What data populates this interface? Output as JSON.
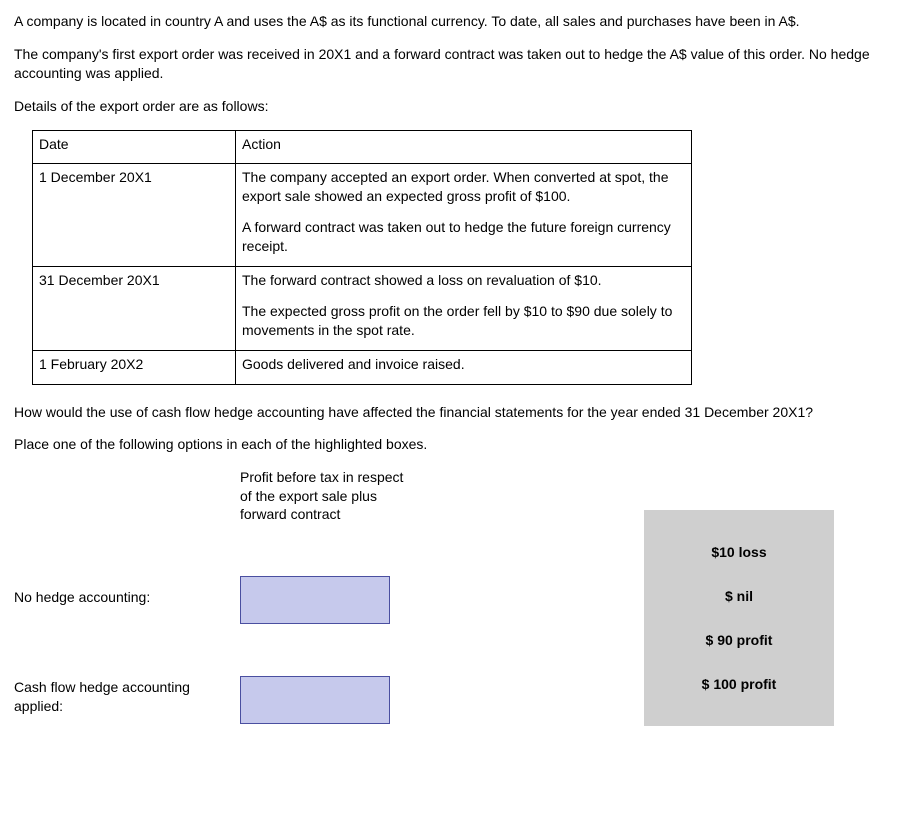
{
  "intro": {
    "p1": "A company is located in country A and uses the A$ as its functional currency. To date, all sales and purchases have been in A$.",
    "p2": "The company's first export order was received in 20X1 and a forward contract was taken out to hedge the A$ value of this order. No hedge accounting was applied.",
    "p3": "Details of the export order are as follows:"
  },
  "details_table": {
    "headers": {
      "date": "Date",
      "action": "Action"
    },
    "rows": [
      {
        "date": "1 December 20X1",
        "blocks": [
          "The company accepted an export order. When converted at spot, the export sale showed an expected gross profit of $100.",
          "A forward contract was taken out to hedge the future foreign currency receipt."
        ]
      },
      {
        "date": "31 December 20X1",
        "blocks": [
          "The forward contract showed a loss on revaluation of $10.",
          "The expected gross profit on the order fell by $10 to $90 due solely to movements in the spot rate."
        ]
      },
      {
        "date": "1 February 20X2",
        "blocks": [
          "Goods delivered and invoice raised."
        ]
      }
    ]
  },
  "question": "How would the use of cash flow hedge accounting have affected the financial statements for the year ended 31 December 20X1?",
  "instruction": "Place one of the following options in each of the highlighted boxes.",
  "answer_grid": {
    "column_header": "Profit before tax in respect of the export sale plus forward contract",
    "rows": [
      {
        "label": "No hedge accounting:"
      },
      {
        "label": "Cash flow hedge accounting applied:"
      }
    ]
  },
  "options": [
    "$10 loss",
    "$ nil",
    "$ 90 profit",
    "$ 100 profit"
  ],
  "styles": {
    "dropbox_bg": "#c6c9ec",
    "dropbox_border": "#4a4fa0",
    "options_bg": "#cfcfcf"
  }
}
